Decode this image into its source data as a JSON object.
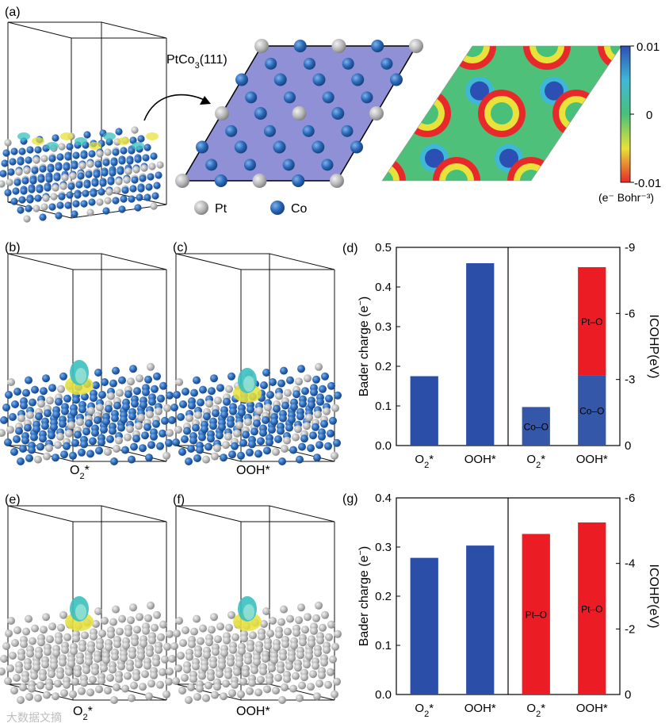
{
  "figure": {
    "panel_a": {
      "label": "(a)",
      "slab_label": "PtCo",
      "slab_sub": "3",
      "slab_suffix": "(111)",
      "legend_pt": "Pt",
      "legend_co": "Co",
      "colorbar": {
        "max": "0.01",
        "mid": "0",
        "min": "-0.01",
        "units": "(e⁻ Bohr⁻³)",
        "colors": [
          "#2b4fb3",
          "#3fb8d8",
          "#48c07a",
          "#e8e23a",
          "#e8292b"
        ]
      }
    },
    "panel_b": {
      "label": "(b)",
      "cap_main": "O",
      "cap_sub": "2",
      "cap_suffix": "*"
    },
    "panel_c": {
      "label": "(c)",
      "cap": "OOH*"
    },
    "panel_e": {
      "label": "(e)",
      "cap_main": "O",
      "cap_sub": "2",
      "cap_suffix": "*"
    },
    "panel_f": {
      "label": "(f)",
      "cap": "OOH*"
    },
    "watermark": "大数据文摘"
  },
  "chart_data": [
    {
      "panel": "(d)",
      "type": "bar",
      "left_axis": {
        "label_main": "Bader charge (e",
        "label_sup": "−",
        "label_end": ")",
        "ylim": [
          0.0,
          0.5
        ],
        "ticks": [
          "0.0",
          "0.1",
          "0.2",
          "0.3",
          "0.4",
          "0.5"
        ]
      },
      "right_axis": {
        "label": "ICOHP(eV)",
        "ylim": [
          0,
          -9
        ],
        "ticks": [
          "0",
          "-3",
          "-6",
          "-9"
        ]
      },
      "categories": [
        "O2*",
        "OOH*",
        "O2*",
        "OOH*"
      ],
      "bader_charge": [
        0.175,
        0.46
      ],
      "icohp": [
        {
          "category": "O2*",
          "segments": [
            {
              "name": "Co–O",
              "value": -1.75,
              "color": "#3457a9"
            }
          ]
        },
        {
          "category": "OOH*",
          "segments": [
            {
              "name": "Co–O",
              "value": -3.2,
              "color": "#3457a9"
            },
            {
              "name": "Pt–O",
              "value": -4.9,
              "color": "#ec1c24"
            }
          ]
        }
      ],
      "bar_color": "#2b4ea8"
    },
    {
      "panel": "(g)",
      "type": "bar",
      "left_axis": {
        "label_main": "Bader charge (e",
        "label_sup": "−",
        "label_end": ")",
        "ylim": [
          0.0,
          0.4
        ],
        "ticks": [
          "0.0",
          "0.1",
          "0.2",
          "0.3",
          "0.4"
        ]
      },
      "right_axis": {
        "label": "ICOHP(eV)",
        "ylim": [
          0,
          -6
        ],
        "ticks": [
          "0",
          "-2",
          "-4",
          "-6"
        ]
      },
      "categories": [
        "O2*",
        "OOH*",
        "O2*",
        "OOH*"
      ],
      "bader_charge": [
        0.278,
        0.303
      ],
      "icohp": [
        {
          "category": "O2*",
          "segments": [
            {
              "name": "Pt–O",
              "value": -4.9,
              "color": "#ec1c24"
            }
          ]
        },
        {
          "category": "OOH*",
          "segments": [
            {
              "name": "Pt–O",
              "value": -5.25,
              "color": "#ec1c24"
            }
          ]
        }
      ],
      "bar_color": "#2b4ea8"
    }
  ]
}
